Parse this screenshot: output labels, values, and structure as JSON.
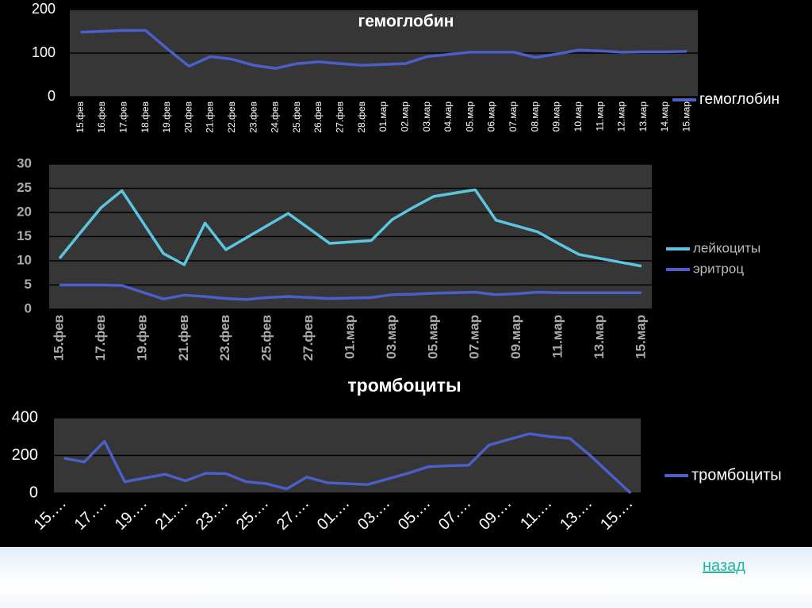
{
  "chart_data": [
    {
      "type": "line",
      "title": "гемоглобин",
      "categories": [
        "15.фев",
        "16.фев",
        "17.фев",
        "18.фев",
        "19.фев",
        "20.фев",
        "21.фев",
        "22.фев",
        "23.фев",
        "24.фев",
        "25.фев",
        "26.фев",
        "27.фев",
        "28.фев",
        "01.мар",
        "02.мар",
        "03.мар",
        "04.мар",
        "05.мар",
        "06.мар",
        "07.мар",
        "08.мар",
        "09.мар",
        "10.мар",
        "11.мар",
        "12.мар",
        "13.мар",
        "14.мар",
        "15.мар"
      ],
      "series": [
        {
          "name": "гемоглобин",
          "color": "#4a5fc8",
          "values": [
            148,
            150,
            152,
            152,
            110,
            70,
            92,
            86,
            72,
            65,
            76,
            80,
            76,
            72,
            74,
            76,
            92,
            97,
            102,
            102,
            102,
            90,
            98,
            107,
            105,
            102,
            103,
            103,
            104
          ]
        }
      ],
      "ylim": [
        0,
        200
      ],
      "yticks": [
        0,
        100,
        200
      ],
      "grid": true,
      "legend": "right"
    },
    {
      "type": "line",
      "categories": [
        "15.фев",
        null,
        "17.фев",
        null,
        "19.фев",
        null,
        "21.фев",
        null,
        "23.фев",
        null,
        "25.фев",
        null,
        "27.фев",
        null,
        "01.мар",
        null,
        "03.мар",
        null,
        "05.мар",
        null,
        "07.мар",
        null,
        "09.мар",
        null,
        "11.мар",
        null,
        "13.мар",
        null,
        "15.мар"
      ],
      "series": [
        {
          "name": "лейкоциты",
          "color": "#5cc6e0",
          "values": [
            10.5,
            15.8,
            21,
            24.5,
            18,
            11.5,
            9.2,
            17.8,
            12.3,
            14.8,
            17.3,
            19.8,
            16.7,
            13.6,
            13.9,
            14.2,
            18.5,
            21,
            23.3,
            24,
            24.7,
            18.4,
            17.2,
            16,
            13.6,
            11.3,
            10.5,
            9.7,
            8.9
          ]
        },
        {
          "name": "эритроц",
          "color": "#4a5fc8",
          "values": [
            5,
            5,
            5,
            4.9,
            3.5,
            2.1,
            2.9,
            2.6,
            2.2,
            2.0,
            2.4,
            2.6,
            2.4,
            2.2,
            2.3,
            2.4,
            3.0,
            3.1,
            3.3,
            3.4,
            3.5,
            3.0,
            3.2,
            3.5,
            3.4,
            3.4,
            3.4,
            3.4,
            3.4
          ]
        }
      ],
      "ylim": [
        0,
        30
      ],
      "yticks": [
        0,
        5,
        10,
        15,
        20,
        25,
        30
      ],
      "grid": true,
      "legend": "right"
    },
    {
      "type": "line",
      "title": "тромбоциты",
      "categories": [
        "15.…",
        null,
        "17.…",
        null,
        "19.…",
        null,
        "21.…",
        null,
        "23.…",
        null,
        "25.…",
        null,
        "27.…",
        null,
        "01.…",
        null,
        "03.…",
        null,
        "05.…",
        null,
        "07.…",
        null,
        "09.…",
        null,
        "11.…",
        null,
        "13.…",
        null,
        "15.…"
      ],
      "series": [
        {
          "name": "тромбоциты",
          "color": "#4a5fc8",
          "values": [
            185,
            165,
            275,
            60,
            80,
            100,
            65,
            105,
            103,
            60,
            50,
            22,
            85,
            55,
            50,
            45,
            75,
            105,
            140,
            145,
            148,
            255,
            285,
            315,
            300,
            290,
            200,
            100,
            0
          ]
        }
      ],
      "ylim": [
        0,
        400
      ],
      "yticks": [
        0,
        200,
        400
      ],
      "grid": true,
      "legend": "right"
    }
  ],
  "link": "назад"
}
